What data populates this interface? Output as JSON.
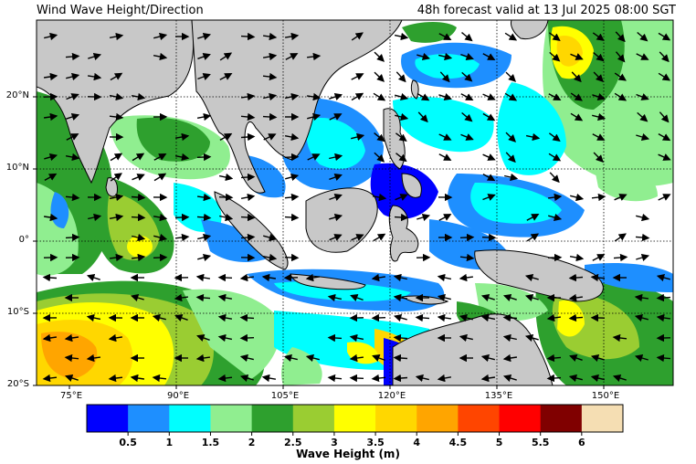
{
  "title_left": "Wind Wave Height/Direction",
  "title_right": "48h forecast valid at 13 Jul 2025 08:00 SGT",
  "lat_labels": [
    "20°N",
    "10°N",
    "0°",
    "10°S",
    "20°S"
  ],
  "lon_labels": [
    "75°E",
    "90°E",
    "105°E",
    "120°E",
    "135°E",
    "150°E"
  ],
  "colorbar": {
    "title": "Wave Height (m)",
    "ticks": [
      "0.5",
      "1",
      "1.5",
      "2",
      "2.5",
      "3",
      "3.5",
      "4",
      "4.5",
      "5",
      "5.5",
      "6"
    ],
    "colors": [
      "#0000ff",
      "#1e8fff",
      "#00ffff",
      "#90ee90",
      "#2ea02e",
      "#9acd32",
      "#ffff00",
      "#ffd700",
      "#ffa500",
      "#ff4500",
      "#ff0000",
      "#800000",
      "#f5deb3"
    ]
  },
  "colors": {
    "land": "#c8c8c8",
    "sea_calm": "#ffffff",
    "arrow": "#000000"
  }
}
